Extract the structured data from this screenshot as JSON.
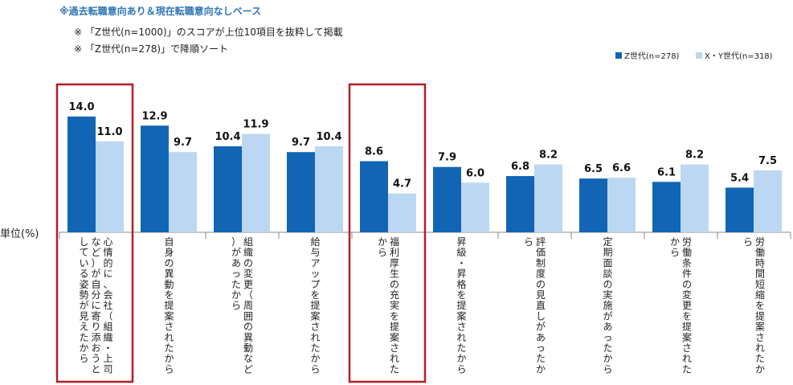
{
  "notes": {
    "title": "※過去転職意向あり＆現在転職意向なしベース",
    "line1": "※ 「Z世代(n=1000)」のスコアが上位10項目を抜粋して掲載",
    "line2": "※ 「Z世代(n=278)」で降順ソート"
  },
  "colors": {
    "z": "#1165b4",
    "xy": "#bcd7f2",
    "highlight": "#b21f24"
  },
  "chart_data": {
    "type": "bar",
    "unit_label": "単位(%)",
    "categories": [
      "心情的に、会社（組織・上司など）が自分に寄り添おうとしている姿勢が見えたから",
      "自身の異動を提案されたから",
      "組織の変更（周囲の異動など）があったから",
      "給与アップを提案されたから",
      "福利厚生の充実を提案されたから",
      "昇級・昇格を提案されたから",
      "評価制度の見直しがあったから",
      "定期面談の実施があったから",
      "労働条件の変更を提案されたから",
      "労働時間短縮を提案されたから"
    ],
    "series": [
      {
        "name": "Z世代(n=278)",
        "values": [
          14.0,
          12.9,
          10.4,
          9.7,
          8.6,
          7.9,
          6.8,
          6.5,
          6.1,
          5.4
        ]
      },
      {
        "name": "X・Y世代(n=318)",
        "values": [
          11.0,
          9.7,
          11.9,
          10.4,
          4.7,
          6.0,
          8.2,
          6.6,
          8.2,
          7.5
        ]
      }
    ],
    "legend_position": "top-right",
    "highlighted_categories": [
      0,
      4
    ],
    "ylim": [
      0,
      14.0
    ],
    "grid": false
  }
}
